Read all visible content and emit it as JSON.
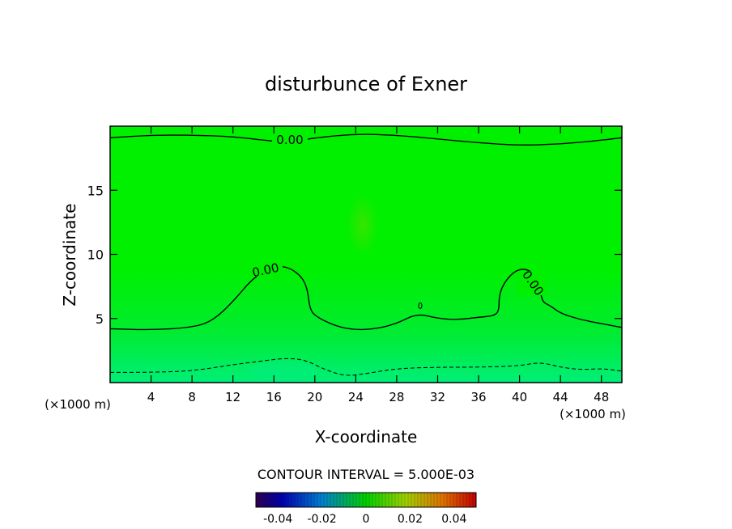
{
  "chart_data": {
    "type": "heatmap",
    "title": "disturbunce of Exner",
    "xlabel": "X-coordinate",
    "ylabel": "Z-coordinate",
    "x_unit": "(×1000 m)",
    "z_unit": "(×1000 m)",
    "xlim": [
      0,
      50
    ],
    "ylim": [
      0,
      20
    ],
    "x_ticks": [
      4,
      8,
      12,
      16,
      20,
      24,
      28,
      32,
      36,
      40,
      44,
      48
    ],
    "y_ticks": [
      5,
      10,
      15
    ],
    "contour_interval_text": "CONTOUR INTERVAL = 5.000E-03",
    "contour_labels": [
      "0.00",
      "0.00",
      "0.00"
    ],
    "colorbar": {
      "range": [
        -0.05,
        0.05
      ],
      "ticks": [
        "-0.04",
        "-0.02",
        "0",
        "0.02",
        "0.04"
      ]
    },
    "colors": {
      "field": "#00f000",
      "field_low": "#00f070",
      "contour": "#000000"
    },
    "contours": [
      {
        "level": 0.0,
        "style": "solid",
        "points": [
          [
            0,
            19.1
          ],
          [
            4,
            19.3
          ],
          [
            8,
            19.3
          ],
          [
            12,
            19.2
          ],
          [
            16,
            18.8
          ],
          [
            18,
            18.8
          ],
          [
            20,
            19.1
          ],
          [
            24,
            19.4
          ],
          [
            28,
            19.3
          ],
          [
            32,
            19.0
          ],
          [
            36,
            18.7
          ],
          [
            40,
            18.5
          ],
          [
            44,
            18.6
          ],
          [
            48,
            18.9
          ],
          [
            50,
            19.1
          ]
        ]
      },
      {
        "level": 0.0,
        "style": "solid",
        "points": [
          [
            0,
            4.2
          ],
          [
            4,
            4.1
          ],
          [
            8,
            4.3
          ],
          [
            10,
            4.8
          ],
          [
            12,
            6.3
          ],
          [
            14,
            8.2
          ],
          [
            16,
            9.1
          ],
          [
            17.5,
            9.0
          ],
          [
            18.8,
            8.2
          ],
          [
            19.3,
            7.2
          ],
          [
            19.5,
            5.8
          ],
          [
            20,
            5.2
          ],
          [
            22,
            4.4
          ],
          [
            24,
            4.1
          ],
          [
            26,
            4.2
          ],
          [
            28,
            4.6
          ],
          [
            30,
            5.4
          ],
          [
            32,
            5.0
          ],
          [
            34,
            4.9
          ],
          [
            36,
            5.1
          ],
          [
            37.5,
            5.2
          ],
          [
            38,
            5.6
          ],
          [
            38,
            6.8
          ],
          [
            38.5,
            7.8
          ],
          [
            39.5,
            8.7
          ],
          [
            40.5,
            8.9
          ],
          [
            41.5,
            8.5
          ],
          [
            42,
            7.5
          ],
          [
            42.2,
            6.3
          ],
          [
            43,
            6.0
          ],
          [
            44,
            5.4
          ],
          [
            46,
            4.9
          ],
          [
            48,
            4.6
          ],
          [
            50,
            4.3
          ]
        ]
      },
      {
        "level": -0.005,
        "style": "dashed",
        "points": [
          [
            0,
            0.8
          ],
          [
            4,
            0.8
          ],
          [
            8,
            0.9
          ],
          [
            12,
            1.4
          ],
          [
            15,
            1.7
          ],
          [
            17,
            1.9
          ],
          [
            19,
            1.8
          ],
          [
            21,
            1.0
          ],
          [
            23,
            0.5
          ],
          [
            25,
            0.7
          ],
          [
            28,
            1.1
          ],
          [
            32,
            1.2
          ],
          [
            36,
            1.2
          ],
          [
            40,
            1.3
          ],
          [
            42,
            1.6
          ],
          [
            44,
            1.2
          ],
          [
            46,
            1.0
          ],
          [
            48,
            1.1
          ],
          [
            50,
            0.9
          ]
        ]
      }
    ]
  }
}
